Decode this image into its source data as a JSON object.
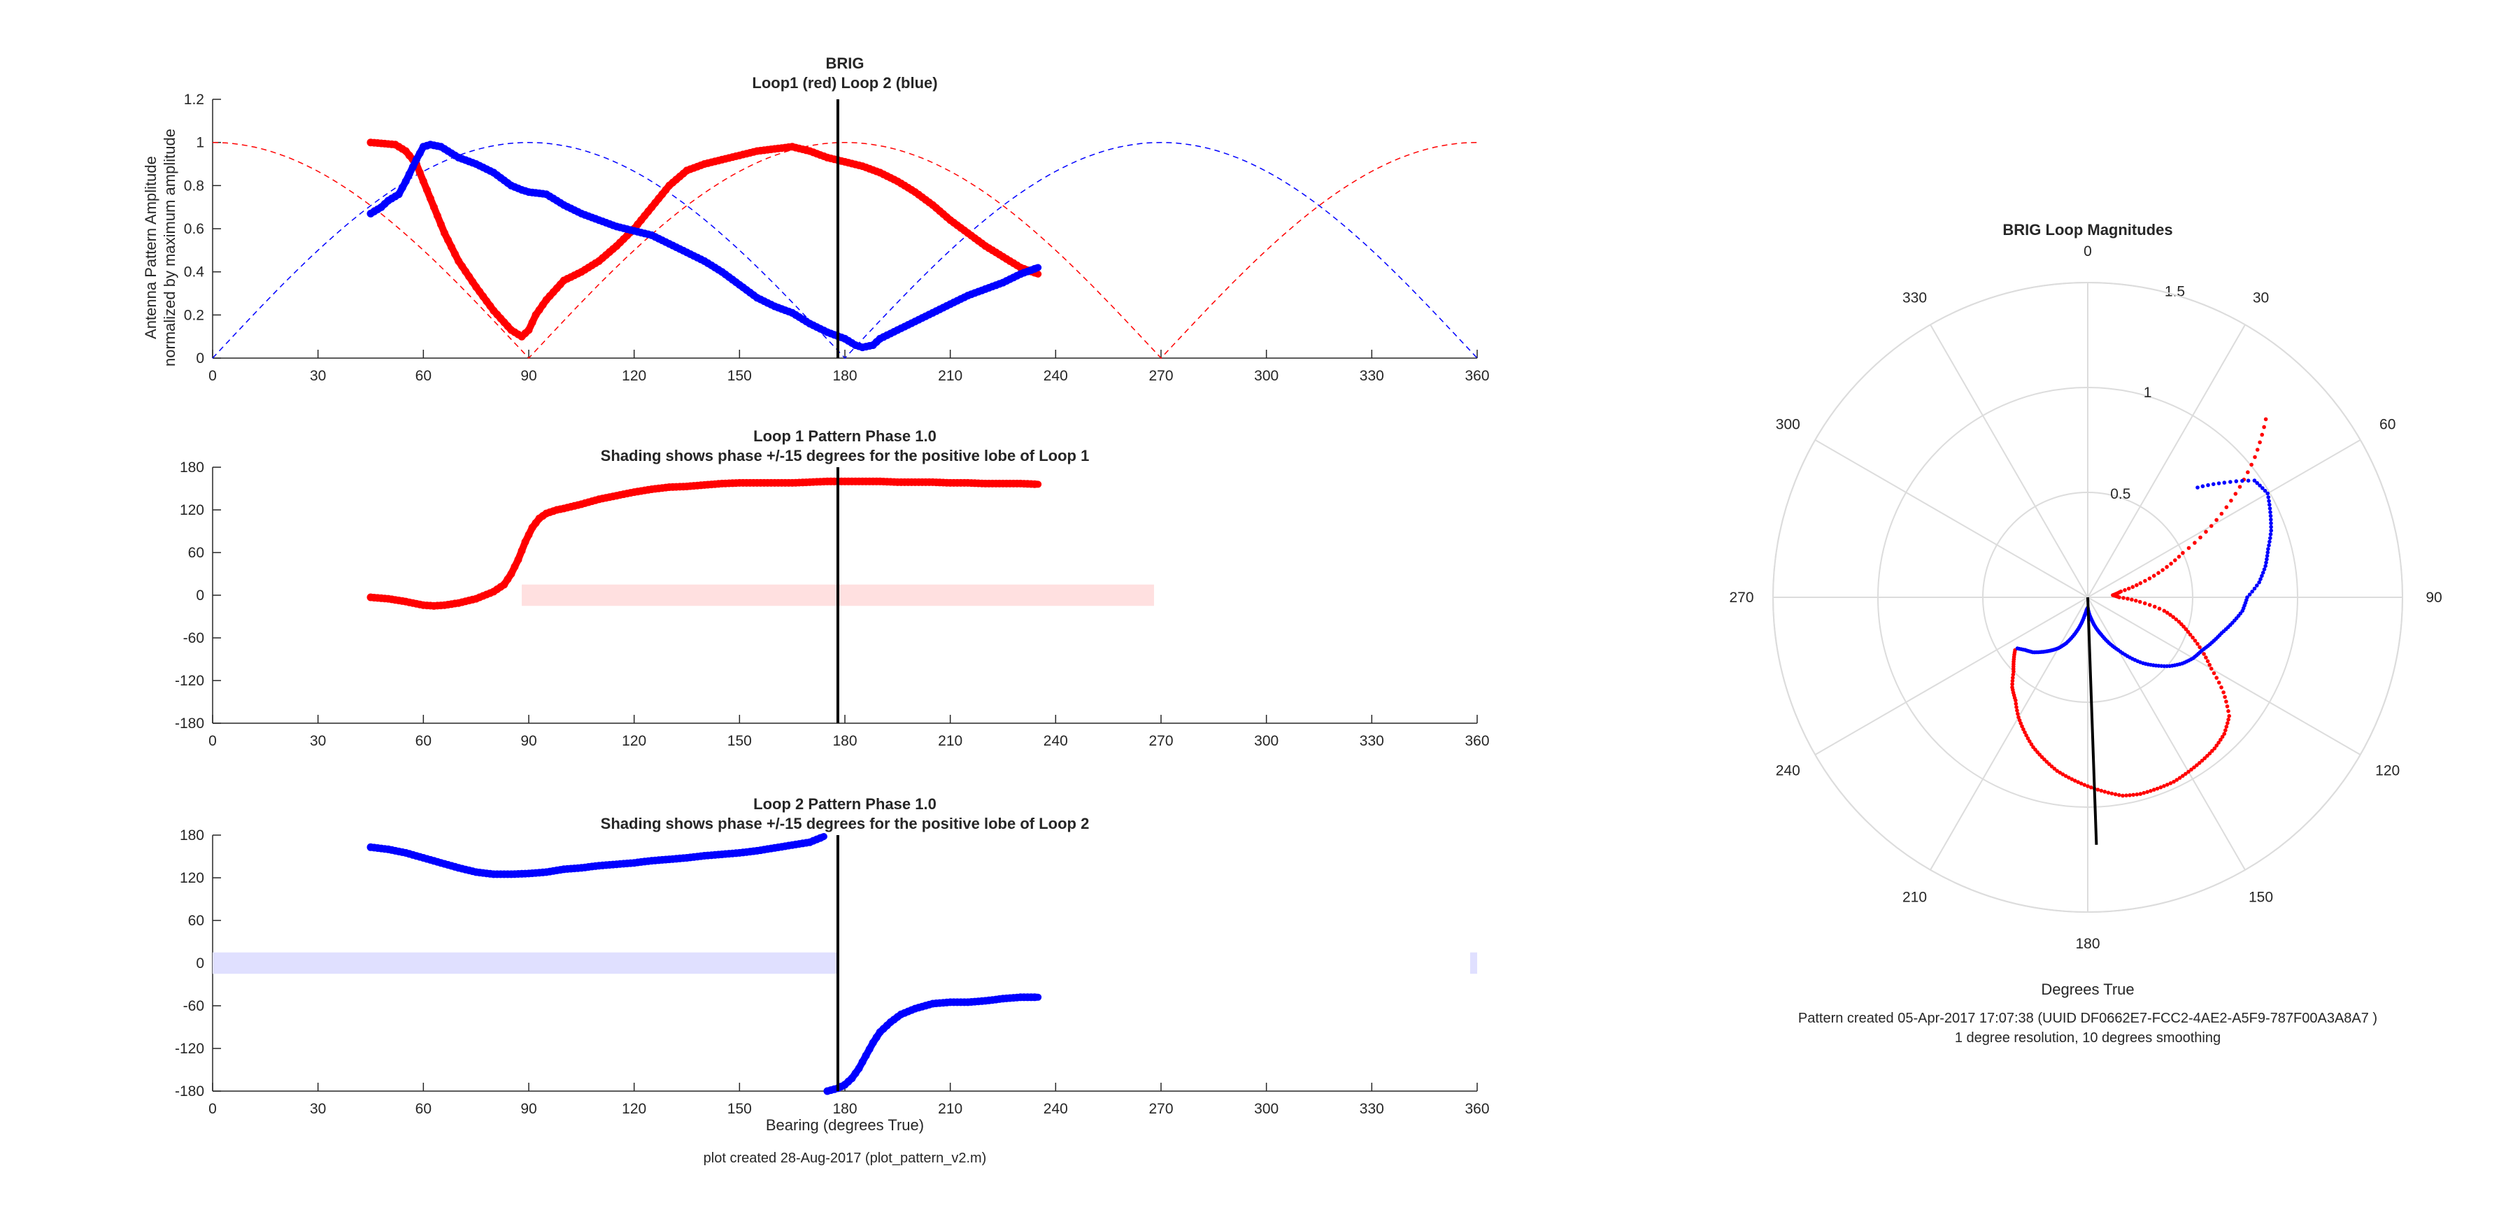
{
  "chart_data": [
    {
      "type": "line",
      "title": "BRIG",
      "subtitle": "Loop1 (red) Loop 2 (blue)",
      "ylabel_line1": "Antenna Pattern Amplitude",
      "ylabel_line2": "normalized by maximum amplitude",
      "xlim": [
        0,
        360
      ],
      "ylim": [
        0,
        1.2
      ],
      "xticks": [
        0,
        30,
        60,
        90,
        120,
        150,
        180,
        210,
        240,
        270,
        300,
        330,
        360
      ],
      "yticks": [
        0,
        0.2,
        0.4,
        0.6,
        0.8,
        1,
        1.2
      ],
      "ytick_labels": [
        "0",
        "0.2",
        "0.4",
        "0.6",
        "0.8",
        "1",
        "1.2"
      ],
      "colors": {
        "loop1": "#ff0000",
        "loop2": "#0000ff",
        "marker": "#000000"
      },
      "marker_bearing": 178,
      "ideal_cos": {
        "description_style": "dashed",
        "loop1_null": [
          90,
          270
        ],
        "loop2_null": [
          0,
          180,
          360
        ]
      },
      "series": [
        {
          "color": "#ff0000",
          "x": [
            45,
            52,
            55,
            58,
            60,
            63,
            66,
            70,
            75,
            80,
            85,
            88,
            90,
            92,
            95,
            100,
            105,
            110,
            115,
            120,
            125,
            130,
            135,
            140,
            145,
            150,
            155,
            160,
            165,
            170,
            175,
            180,
            185,
            190,
            195,
            200,
            205,
            210,
            215,
            220,
            225,
            230,
            235
          ],
          "y": [
            1.0,
            0.99,
            0.96,
            0.9,
            0.82,
            0.7,
            0.58,
            0.45,
            0.33,
            0.22,
            0.13,
            0.1,
            0.13,
            0.2,
            0.27,
            0.36,
            0.4,
            0.45,
            0.52,
            0.6,
            0.7,
            0.8,
            0.87,
            0.9,
            0.92,
            0.94,
            0.96,
            0.97,
            0.98,
            0.96,
            0.93,
            0.91,
            0.89,
            0.86,
            0.82,
            0.77,
            0.71,
            0.64,
            0.58,
            0.52,
            0.47,
            0.42,
            0.39
          ]
        },
        {
          "color": "#0000ff",
          "x": [
            45,
            48,
            50,
            53,
            55,
            58,
            60,
            62,
            65,
            68,
            70,
            75,
            80,
            85,
            88,
            90,
            95,
            100,
            105,
            110,
            115,
            120,
            125,
            130,
            135,
            140,
            145,
            150,
            155,
            160,
            165,
            170,
            175,
            180,
            183,
            185,
            188,
            190,
            195,
            200,
            205,
            210,
            215,
            220,
            225,
            230,
            235
          ],
          "y": [
            0.67,
            0.7,
            0.73,
            0.76,
            0.82,
            0.92,
            0.98,
            0.99,
            0.98,
            0.95,
            0.93,
            0.9,
            0.86,
            0.8,
            0.78,
            0.77,
            0.76,
            0.71,
            0.67,
            0.64,
            0.61,
            0.59,
            0.57,
            0.53,
            0.49,
            0.45,
            0.4,
            0.34,
            0.28,
            0.24,
            0.21,
            0.16,
            0.12,
            0.09,
            0.06,
            0.05,
            0.06,
            0.09,
            0.13,
            0.17,
            0.21,
            0.25,
            0.29,
            0.32,
            0.35,
            0.39,
            0.42
          ]
        }
      ]
    },
    {
      "type": "line",
      "title": "Loop 1 Pattern Phase 1.0",
      "subtitle": "Shading shows phase +/-15 degrees for the positive lobe of Loop 1",
      "xlim": [
        0,
        360
      ],
      "ylim": [
        -180,
        180
      ],
      "xticks": [
        0,
        30,
        60,
        90,
        120,
        150,
        180,
        210,
        240,
        270,
        300,
        330,
        360
      ],
      "yticks": [
        -180,
        -120,
        -60,
        0,
        60,
        120,
        180
      ],
      "shading": {
        "x_ranges": [
          [
            88,
            268
          ]
        ],
        "y_range": [
          -15,
          15
        ],
        "color": "#ffe0e0"
      },
      "marker_bearing": 178,
      "series": [
        {
          "color": "#ff0000",
          "x": [
            45,
            50,
            55,
            60,
            63,
            66,
            70,
            75,
            80,
            83,
            85,
            87,
            89,
            91,
            93,
            95,
            98,
            100,
            105,
            110,
            115,
            120,
            125,
            130,
            135,
            140,
            145,
            150,
            155,
            160,
            165,
            170,
            175,
            180,
            185,
            190,
            195,
            200,
            205,
            210,
            215,
            220,
            225,
            230,
            235
          ],
          "y": [
            -3,
            -5,
            -9,
            -14,
            -15,
            -14,
            -11,
            -5,
            5,
            15,
            30,
            50,
            75,
            95,
            108,
            115,
            120,
            122,
            128,
            135,
            140,
            145,
            149,
            152,
            153,
            155,
            157,
            158,
            158,
            158,
            158,
            159,
            160,
            160,
            160,
            160,
            159,
            159,
            159,
            158,
            158,
            157,
            157,
            157,
            156
          ]
        }
      ]
    },
    {
      "type": "line",
      "title": "Loop 2 Pattern Phase 1.0",
      "subtitle": "Shading shows phase +/-15 degrees for the positive lobe of Loop 2",
      "xlabel": "Bearing (degrees True)",
      "xlim": [
        0,
        360
      ],
      "ylim": [
        -180,
        180
      ],
      "xticks": [
        0,
        30,
        60,
        90,
        120,
        150,
        180,
        210,
        240,
        270,
        300,
        330,
        360
      ],
      "yticks": [
        -180,
        -120,
        -60,
        0,
        60,
        120,
        180
      ],
      "shading": {
        "x_ranges": [
          [
            0,
            178
          ],
          [
            358,
            360
          ]
        ],
        "y_range": [
          -15,
          15
        ],
        "color": "#e0e0ff"
      },
      "marker_bearing": 178,
      "series": [
        {
          "color": "#0000ff",
          "x": [
            45,
            50,
            55,
            60,
            65,
            70,
            75,
            80,
            85,
            90,
            95,
            100,
            105,
            110,
            115,
            120,
            125,
            130,
            135,
            140,
            145,
            150,
            155,
            160,
            165,
            170,
            174
          ],
          "y": [
            163,
            160,
            155,
            148,
            141,
            134,
            128,
            125,
            125,
            126,
            128,
            132,
            134,
            137,
            139,
            141,
            144,
            146,
            148,
            151,
            153,
            155,
            158,
            162,
            166,
            170,
            178
          ]
        },
        {
          "color": "#0000ff",
          "x": [
            175,
            178,
            180,
            182,
            184,
            186,
            188,
            190,
            193,
            196,
            200,
            205,
            210,
            215,
            220,
            225,
            230,
            235
          ],
          "y": [
            -180,
            -176,
            -171,
            -162,
            -148,
            -130,
            -112,
            -97,
            -83,
            -72,
            -64,
            -57,
            -55,
            -55,
            -53,
            -50,
            -48,
            -48
          ]
        }
      ]
    },
    {
      "type": "line",
      "title": "BRIG Loop Magnitudes",
      "xlabel": "Degrees True",
      "polar": true,
      "rlim": [
        0,
        1.5
      ],
      "rticks": [
        0.5,
        1,
        1.5
      ],
      "rtick_labels": [
        "0.5",
        "1",
        "1.5"
      ],
      "theta_ticks": [
        0,
        30,
        60,
        90,
        120,
        150,
        180,
        210,
        240,
        270,
        300,
        330
      ],
      "marker": {
        "bearing": 178,
        "r": 1.18,
        "color": "#000000"
      },
      "series": [
        {
          "color": "#ff0000",
          "style": "dotted",
          "theta": [
            45,
            50,
            55,
            60,
            65,
            70,
            75,
            80,
            85,
            90,
            95,
            100,
            105,
            110,
            115,
            120,
            125,
            130,
            135,
            140,
            145,
            150,
            155,
            160,
            165,
            170,
            175,
            180,
            185,
            190,
            195,
            200,
            205,
            210,
            215,
            220,
            225,
            230,
            235
          ],
          "r": [
            1.2,
            1.04,
            0.86,
            0.68,
            0.5,
            0.38,
            0.26,
            0.16,
            0.12,
            0.15,
            0.25,
            0.37,
            0.45,
            0.52,
            0.6,
            0.68,
            0.79,
            0.88,
            0.92,
            0.94,
            0.95,
            0.96,
            0.97,
            0.97,
            0.97,
            0.96,
            0.93,
            0.9,
            0.87,
            0.84,
            0.8,
            0.76,
            0.71,
            0.66,
            0.6,
            0.56,
            0.5,
            0.46,
            0.42
          ]
        },
        {
          "color": "#0000ff",
          "style": "dotted",
          "theta": [
            45,
            50,
            55,
            60,
            65,
            70,
            75,
            80,
            85,
            90,
            95,
            100,
            105,
            110,
            115,
            120,
            125,
            130,
            135,
            140,
            145,
            150,
            155,
            160,
            165,
            170,
            175,
            180,
            185,
            190,
            195,
            200,
            205,
            210,
            215,
            220,
            225,
            230,
            235
          ],
          "r": [
            0.74,
            0.85,
            0.97,
            0.99,
            0.96,
            0.93,
            0.89,
            0.86,
            0.82,
            0.76,
            0.74,
            0.7,
            0.66,
            0.63,
            0.6,
            0.58,
            0.55,
            0.51,
            0.46,
            0.41,
            0.35,
            0.29,
            0.24,
            0.19,
            0.15,
            0.11,
            0.08,
            0.05,
            0.06,
            0.09,
            0.14,
            0.19,
            0.24,
            0.28,
            0.31,
            0.34,
            0.37,
            0.39,
            0.42
          ]
        }
      ]
    }
  ],
  "xlabel_bottom": "Bearing (degrees True)",
  "footer_left": "plot created 28-Aug-2017 (plot_pattern_v2.m)",
  "polar_xlabel": "Degrees True",
  "footer_right_line1": "Pattern created 05-Apr-2017 17:07:38 (UUID DF0662E7-FCC2-4AE2-A5F9-787F00A3A8A7 )",
  "footer_right_line2": "1 degree resolution, 10 degrees smoothing"
}
